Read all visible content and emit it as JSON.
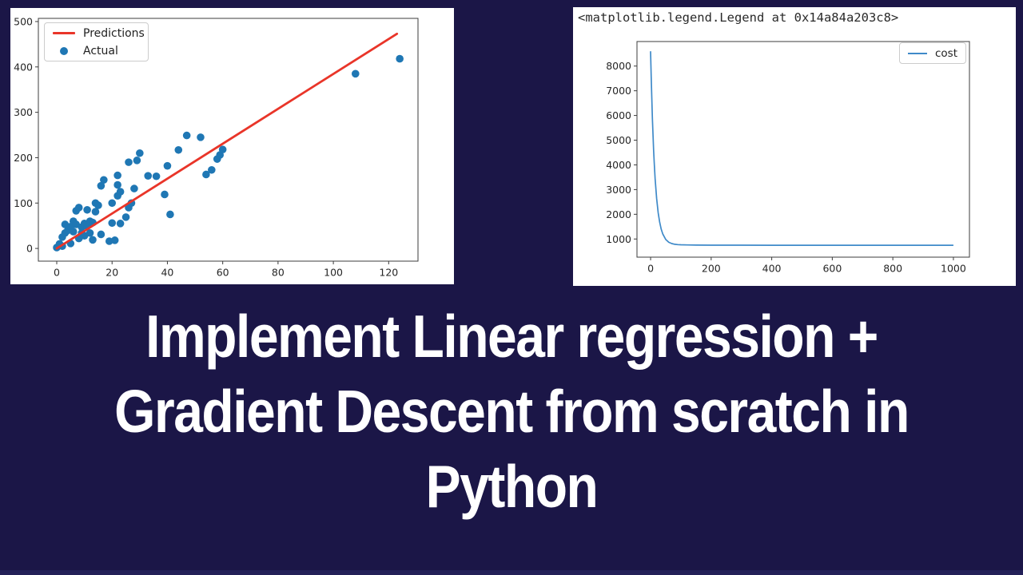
{
  "colors": {
    "background": "#1b1647",
    "bottom_strip": "#232058",
    "caption_text": "#ffffff",
    "predictions_red": "#e93529",
    "actual_blue": "#1f77b4",
    "cost_blue": "#3f8ac9"
  },
  "caption": {
    "lines": [
      "Implement Linear regression +",
      "Gradient Descent from scratch in",
      "Python"
    ]
  },
  "chart_data": [
    {
      "type": "scatter",
      "title": "",
      "xlabel": "",
      "ylabel": "",
      "xlim": [
        -6.65,
        130.6
      ],
      "ylim": [
        -28,
        507
      ],
      "xticks": [
        0,
        20,
        40,
        60,
        80,
        100,
        120
      ],
      "yticks": [
        0,
        100,
        200,
        300,
        400,
        500
      ],
      "grid": false,
      "legend_position": "upper-left",
      "legend": [
        {
          "label": "Predictions",
          "marker": "line",
          "color": "#e93529"
        },
        {
          "label": "Actual",
          "marker": "dot",
          "color": "#1f77b4"
        }
      ],
      "line": {
        "name": "Predictions",
        "color": "#e93529",
        "x": [
          0,
          123
        ],
        "y": [
          0,
          473
        ]
      },
      "scatter": {
        "name": "Actual",
        "color": "#1f77b4",
        "points": [
          [
            0,
            2
          ],
          [
            1,
            10
          ],
          [
            2,
            5
          ],
          [
            2,
            25
          ],
          [
            3,
            34
          ],
          [
            3,
            53
          ],
          [
            4,
            40
          ],
          [
            5,
            11
          ],
          [
            5,
            48
          ],
          [
            6,
            37
          ],
          [
            6,
            60
          ],
          [
            7,
            53
          ],
          [
            7,
            83
          ],
          [
            8,
            22
          ],
          [
            8,
            90
          ],
          [
            9,
            34
          ],
          [
            9,
            47
          ],
          [
            10,
            28
          ],
          [
            10,
            55
          ],
          [
            11,
            49
          ],
          [
            11,
            85
          ],
          [
            12,
            34
          ],
          [
            12,
            60
          ],
          [
            13,
            19
          ],
          [
            13,
            57
          ],
          [
            14,
            81
          ],
          [
            14,
            100
          ],
          [
            15,
            95
          ],
          [
            16,
            31
          ],
          [
            16,
            138
          ],
          [
            17,
            151
          ],
          [
            19,
            16
          ],
          [
            20,
            56
          ],
          [
            20,
            100
          ],
          [
            21,
            18
          ],
          [
            22,
            116
          ],
          [
            22,
            140
          ],
          [
            22,
            161
          ],
          [
            23,
            55
          ],
          [
            23,
            125
          ],
          [
            25,
            69
          ],
          [
            26,
            90
          ],
          [
            26,
            190
          ],
          [
            27,
            100
          ],
          [
            28,
            132
          ],
          [
            29,
            194
          ],
          [
            30,
            210
          ],
          [
            33,
            160
          ],
          [
            36,
            159
          ],
          [
            39,
            119
          ],
          [
            40,
            182
          ],
          [
            41,
            75
          ],
          [
            44,
            217
          ],
          [
            47,
            249
          ],
          [
            52,
            245
          ],
          [
            54,
            163
          ],
          [
            56,
            173
          ],
          [
            58,
            197
          ],
          [
            59,
            206
          ],
          [
            60,
            218
          ],
          [
            108,
            385
          ],
          [
            124,
            418
          ]
        ]
      }
    },
    {
      "type": "line",
      "heading": "<matplotlib.legend.Legend at 0x14a84a203c8>",
      "title": "",
      "xlabel": "",
      "ylabel": "",
      "xlim": [
        -45,
        1053
      ],
      "ylim": [
        265,
        8993
      ],
      "xticks": [
        0,
        200,
        400,
        600,
        800,
        1000
      ],
      "yticks": [
        1000,
        2000,
        3000,
        4000,
        5000,
        6000,
        7000,
        8000
      ],
      "grid": false,
      "legend_position": "upper-right",
      "legend": [
        {
          "label": "cost",
          "marker": "line",
          "color": "#3f8ac9"
        }
      ],
      "series": [
        {
          "name": "cost",
          "color": "#3f8ac9",
          "x": [
            0,
            2,
            4,
            6,
            8,
            10,
            12,
            15,
            20,
            25,
            30,
            35,
            40,
            50,
            60,
            70,
            80,
            90,
            100,
            120,
            150,
            200,
            300,
            400,
            500,
            600,
            700,
            800,
            900,
            1000
          ],
          "y": [
            8600,
            7560,
            6650,
            5860,
            5190,
            4600,
            4080,
            3440,
            2640,
            2070,
            1680,
            1400,
            1210,
            980,
            867,
            813,
            786,
            772,
            766,
            758,
            753,
            750,
            749,
            748,
            748,
            747,
            747,
            747,
            747,
            747
          ]
        }
      ]
    }
  ]
}
